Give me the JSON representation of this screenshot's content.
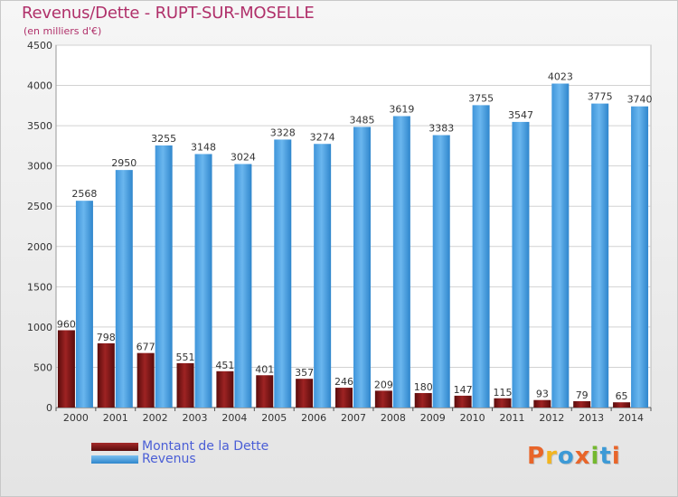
{
  "chart_data": {
    "type": "bar",
    "title": "Revenus/Dette - RUPT-SUR-MOSELLE",
    "subtitle": "(en milliers d'€)",
    "categories": [
      "2000",
      "2001",
      "2002",
      "2003",
      "2004",
      "2005",
      "2006",
      "2007",
      "2008",
      "2009",
      "2010",
      "2011",
      "2012",
      "2013",
      "2014"
    ],
    "series": [
      {
        "name": "Montant de la Dette",
        "color": "#7a1414",
        "values": [
          960,
          798,
          677,
          551,
          451,
          401,
          357,
          246,
          209,
          180,
          147,
          115,
          93,
          79,
          65
        ]
      },
      {
        "name": "Revenus",
        "color": "#4ba3e6",
        "values": [
          2568,
          2950,
          3255,
          3148,
          3024,
          3328,
          3274,
          3485,
          3619,
          3383,
          3755,
          3547,
          4023,
          3775,
          3740
        ]
      }
    ],
    "ylim": [
      0,
      4500
    ],
    "yticks": [
      0,
      500,
      1000,
      1500,
      2000,
      2500,
      3000,
      3500,
      4000,
      4500
    ],
    "grid": true,
    "legend_position": "bottom-left"
  },
  "logo": {
    "text": "Proxiti",
    "colors": [
      "#e8652a",
      "#f2b520",
      "#3d9ad6",
      "#e8652a",
      "#74b82f",
      "#3d9ad6",
      "#e8652a"
    ]
  }
}
